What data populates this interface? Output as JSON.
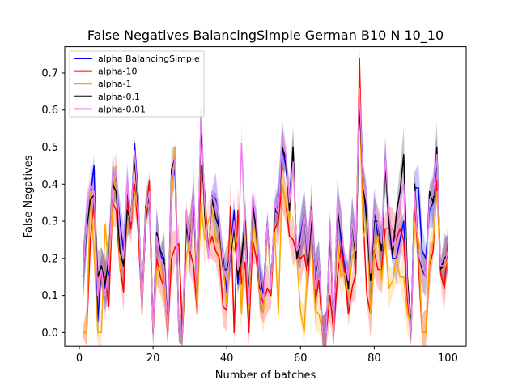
{
  "chart_data": {
    "type": "line",
    "title": "False Negatives BalancingSimple German B10 N 10_10",
    "xlabel": "Number of batches",
    "ylabel": "False Negatives",
    "xlim": [
      -3.95,
      104.95
    ],
    "ylim": [
      -0.0367,
      0.7707
    ],
    "xticks": [
      0,
      20,
      40,
      60,
      80,
      100
    ],
    "yticks": [
      0.0,
      0.1,
      0.2,
      0.3,
      0.4,
      0.5,
      0.6,
      0.7
    ],
    "xtick_labels": [
      "0",
      "20",
      "40",
      "60",
      "80",
      "100"
    ],
    "ytick_labels": [
      "0.0",
      "0.1",
      "0.2",
      "0.3",
      "0.4",
      "0.5",
      "0.6",
      "0.7"
    ],
    "legend_position": "upper-left",
    "grid": false,
    "series": [
      {
        "name": "alpha BalancingSimple",
        "color": "#0000ff",
        "values": [
          0.15,
          0.3,
          0.37,
          0.45,
          0.03,
          0.18,
          0.12,
          0.16,
          0.38,
          0.42,
          0.3,
          0.22,
          0.38,
          0.3,
          0.51,
          0.36,
          0.06,
          0.3,
          0.38,
          0.0,
          0.26,
          0.21,
          0.19,
          0.0,
          0.4,
          0.44,
          0.0,
          0.0,
          0.3,
          0.22,
          0.38,
          0.1,
          0.59,
          0.35,
          0.21,
          0.37,
          0.36,
          0.28,
          0.2,
          0.11,
          0.22,
          0.33,
          0.13,
          0.2,
          0.29,
          0.07,
          0.36,
          0.27,
          0.15,
          0.1,
          0.3,
          0.13,
          0.33,
          0.34,
          0.5,
          0.45,
          0.35,
          0.49,
          0.2,
          0.26,
          0.32,
          0.2,
          0.31,
          0.14,
          0.2,
          0.0,
          0.0,
          0.3,
          0.0,
          0.35,
          0.25,
          0.17,
          0.13,
          0.3,
          0.2,
          0.68,
          0.4,
          0.32,
          0.14,
          0.33,
          0.26,
          0.22,
          0.47,
          0.3,
          0.2,
          0.2,
          0.25,
          0.3,
          0.1,
          0.01,
          0.39,
          0.39,
          0.22,
          0.2,
          0.33,
          0.35,
          0.47,
          0.17,
          0.18,
          0.22
        ]
      },
      {
        "name": "alpha-10",
        "color": "#ff0000",
        "values": [
          0.0,
          0.0,
          0.25,
          0.35,
          0.1,
          0.16,
          0.15,
          0.07,
          0.35,
          0.33,
          0.18,
          0.11,
          0.36,
          0.28,
          0.4,
          0.27,
          0.06,
          0.3,
          0.41,
          0.0,
          0.2,
          0.15,
          0.12,
          0.0,
          0.2,
          0.23,
          0.24,
          0.0,
          0.32,
          0.22,
          0.18,
          0.05,
          0.45,
          0.38,
          0.22,
          0.26,
          0.22,
          0.2,
          0.07,
          0.06,
          0.34,
          0.0,
          0.33,
          0.13,
          0.19,
          0.0,
          0.25,
          0.2,
          0.1,
          0.08,
          0.12,
          0.1,
          0.28,
          0.3,
          0.4,
          0.35,
          0.26,
          0.25,
          0.21,
          0.2,
          0.21,
          0.15,
          0.34,
          0.08,
          0.14,
          0.0,
          0.0,
          0.1,
          0.0,
          0.15,
          0.23,
          0.16,
          0.05,
          0.12,
          0.16,
          0.74,
          0.31,
          0.1,
          0.05,
          0.22,
          0.17,
          0.17,
          0.28,
          0.28,
          0.28,
          0.25,
          0.28,
          0.25,
          0.09,
          0.0,
          0.35,
          0.19,
          0.0,
          0.0,
          0.18,
          0.22,
          0.41,
          0.16,
          0.12,
          0.24
        ]
      },
      {
        "name": "alpha-1",
        "color": "#ffa500",
        "values": [
          0.0,
          0.0,
          0.38,
          0.22,
          0.0,
          0.0,
          0.29,
          0.17,
          0.33,
          0.45,
          0.17,
          0.2,
          0.32,
          0.3,
          0.38,
          0.32,
          0.05,
          0.33,
          0.35,
          0.0,
          0.17,
          0.18,
          0.12,
          0.0,
          0.34,
          0.5,
          0.0,
          0.0,
          0.2,
          0.26,
          0.35,
          0.05,
          0.35,
          0.25,
          0.3,
          0.33,
          0.25,
          0.24,
          0.18,
          0.08,
          0.26,
          0.22,
          0.26,
          0.05,
          0.32,
          0.06,
          0.3,
          0.25,
          0.1,
          0.06,
          0.28,
          0.13,
          0.27,
          0.05,
          0.4,
          0.35,
          0.3,
          0.47,
          0.2,
          0.06,
          0.0,
          0.2,
          0.23,
          0.06,
          0.05,
          0.0,
          0.0,
          0.25,
          0.05,
          0.25,
          0.15,
          0.16,
          0.1,
          0.2,
          0.25,
          0.64,
          0.25,
          0.31,
          0.05,
          0.21,
          0.26,
          0.14,
          0.25,
          0.12,
          0.14,
          0.2,
          0.15,
          0.15,
          0.05,
          0.02,
          0.3,
          0.25,
          0.0,
          0.0,
          0.19,
          0.25,
          0.38,
          0.17,
          0.17,
          0.2
        ]
      },
      {
        "name": "alpha-0.1",
        "color": "#000000",
        "values": [
          0.15,
          0.28,
          0.36,
          0.37,
          0.15,
          0.18,
          0.13,
          0.2,
          0.4,
          0.38,
          0.22,
          0.18,
          0.33,
          0.3,
          0.47,
          0.33,
          0.07,
          0.34,
          0.37,
          0.0,
          0.27,
          0.22,
          0.2,
          0.0,
          0.44,
          0.47,
          0.0,
          0.0,
          0.28,
          0.25,
          0.35,
          0.1,
          0.57,
          0.32,
          0.21,
          0.36,
          0.31,
          0.28,
          0.17,
          0.17,
          0.21,
          0.28,
          0.15,
          0.2,
          0.3,
          0.1,
          0.34,
          0.28,
          0.12,
          0.1,
          0.3,
          0.13,
          0.33,
          0.32,
          0.5,
          0.47,
          0.33,
          0.5,
          0.2,
          0.24,
          0.32,
          0.18,
          0.3,
          0.14,
          0.2,
          0.0,
          0.0,
          0.28,
          0.0,
          0.33,
          0.27,
          0.2,
          0.12,
          0.3,
          0.2,
          0.62,
          0.4,
          0.3,
          0.14,
          0.3,
          0.3,
          0.22,
          0.45,
          0.3,
          0.21,
          0.32,
          0.38,
          0.48,
          0.15,
          0.0,
          0.4,
          0.21,
          0.17,
          0.15,
          0.38,
          0.35,
          0.5,
          0.17,
          0.2,
          0.21
        ]
      },
      {
        "name": "alpha-0.01",
        "color": "#ee82ee",
        "values": [
          0.15,
          0.3,
          0.4,
          0.38,
          0.1,
          0.17,
          0.1,
          0.18,
          0.4,
          0.44,
          0.26,
          0.2,
          0.4,
          0.3,
          0.49,
          0.35,
          0.06,
          0.33,
          0.38,
          0.0,
          0.26,
          0.2,
          0.18,
          0.0,
          0.42,
          0.47,
          0.0,
          0.0,
          0.33,
          0.22,
          0.38,
          0.1,
          0.6,
          0.35,
          0.2,
          0.38,
          0.35,
          0.3,
          0.18,
          0.14,
          0.22,
          0.3,
          0.17,
          0.51,
          0.27,
          0.08,
          0.37,
          0.3,
          0.13,
          0.09,
          0.3,
          0.12,
          0.35,
          0.32,
          0.53,
          0.48,
          0.35,
          0.46,
          0.22,
          0.24,
          0.32,
          0.2,
          0.33,
          0.12,
          0.2,
          0.0,
          0.0,
          0.3,
          0.0,
          0.36,
          0.28,
          0.2,
          0.14,
          0.3,
          0.22,
          0.66,
          0.4,
          0.35,
          0.16,
          0.33,
          0.3,
          0.24,
          0.47,
          0.33,
          0.23,
          0.26,
          0.35,
          0.4,
          0.12,
          0.0,
          0.38,
          0.21,
          0.18,
          0.15,
          0.36,
          0.37,
          0.48,
          0.18,
          0.18,
          0.22
        ]
      }
    ]
  }
}
